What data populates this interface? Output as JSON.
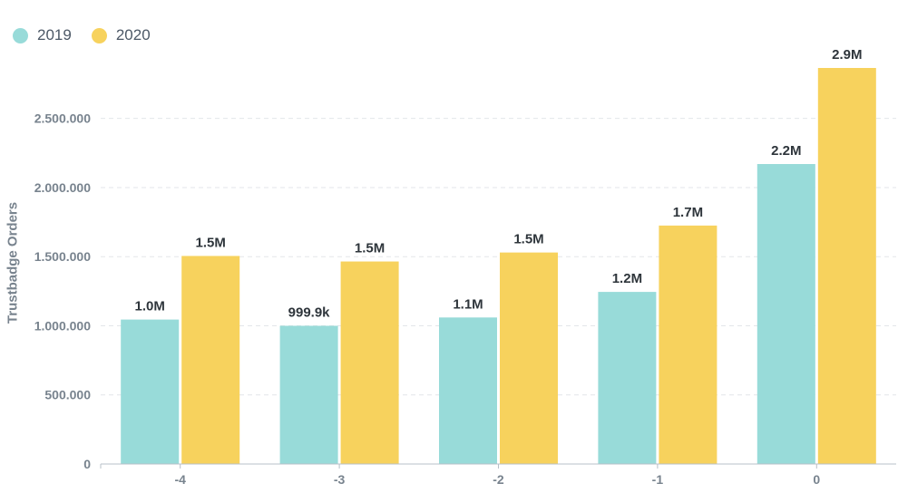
{
  "chart_data": {
    "type": "bar",
    "categories": [
      "-4",
      "-3",
      "-2",
      "-1",
      "0"
    ],
    "series": [
      {
        "name": "2019",
        "color": "#98dbd9",
        "values": [
          1045000,
          999900,
          1060000,
          1245000,
          2170000
        ],
        "labels": [
          "1.0M",
          "999.9k",
          "1.1M",
          "1.2M",
          "2.2M"
        ]
      },
      {
        "name": "2020",
        "color": "#f7d25d",
        "values": [
          1505000,
          1465000,
          1530000,
          1725000,
          2865000
        ],
        "labels": [
          "1.5M",
          "1.5M",
          "1.5M",
          "1.7M",
          "2.9M"
        ]
      }
    ],
    "xlabel": "",
    "ylabel": "Trustbadge Orders",
    "ylim": [
      0,
      2865000
    ],
    "yticks": [
      0,
      500000,
      1000000,
      1500000,
      2000000,
      2500000
    ],
    "ytick_labels": [
      "0",
      "500.000",
      "1.000.000",
      "1.500.000",
      "2.000.000",
      "2.500.000"
    ],
    "grid": true,
    "legend_position": "top-left"
  }
}
